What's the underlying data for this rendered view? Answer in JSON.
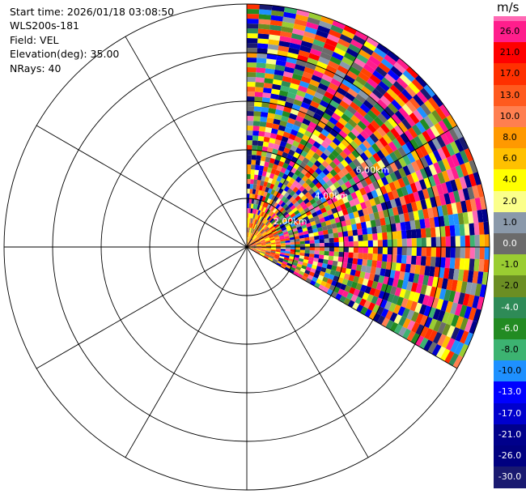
{
  "header": {
    "start_time": "Start time: 2026/01/18 03:08:50",
    "instrument": "WLS200s-181",
    "field": "Field: VEL",
    "elevation": "Elevation(deg): 35.00",
    "nrays": "NRays: 40"
  },
  "ring_labels": [
    "2.00km",
    "4.00km",
    "6.00km"
  ],
  "colorbar": {
    "units": "m/s",
    "entries": [
      {
        "label": "26.0",
        "color": "#ff1e8c"
      },
      {
        "label": "21.0",
        "color": "#ff0000"
      },
      {
        "label": "17.0",
        "color": "#ff3000"
      },
      {
        "label": "13.0",
        "color": "#ff5a1e"
      },
      {
        "label": "10.0",
        "color": "#ff7f50"
      },
      {
        "label": "8.0",
        "color": "#ff9900"
      },
      {
        "label": "6.0",
        "color": "#ffc000"
      },
      {
        "label": "4.0",
        "color": "#ffff00"
      },
      {
        "label": "2.0",
        "color": "#fbff8a"
      },
      {
        "label": "1.0",
        "color": "#8a99aa"
      },
      {
        "label": "0.0",
        "color": "#6b6b6b"
      },
      {
        "label": "-1.0",
        "color": "#9acd32"
      },
      {
        "label": "-2.0",
        "color": "#6b8e23"
      },
      {
        "label": "-4.0",
        "color": "#2e8b57"
      },
      {
        "label": "-6.0",
        "color": "#228b22"
      },
      {
        "label": "-8.0",
        "color": "#3cb371"
      },
      {
        "label": "-10.0",
        "color": "#1e90ff"
      },
      {
        "label": "-13.0",
        "color": "#0000ff"
      },
      {
        "label": "-17.0",
        "color": "#0000cd"
      },
      {
        "label": "-21.0",
        "color": "#00008b"
      },
      {
        "label": "-26.0",
        "color": "#000080"
      },
      {
        "label": "-30.0",
        "color": "#191970"
      }
    ],
    "top_color": "#ff69b4"
  },
  "chart_data": {
    "type": "heatmap",
    "field": "VEL",
    "units": "m/s",
    "elevation_deg": 35.0,
    "n_rays": 40,
    "sector_azimuth_deg": [
      0,
      120
    ],
    "max_range_km": 10.0,
    "range_rings_km": [
      2.0,
      4.0,
      6.0,
      8.0,
      10.0
    ],
    "spoke_interval_deg": 30,
    "value_range": [
      -30.0,
      26.0
    ]
  }
}
